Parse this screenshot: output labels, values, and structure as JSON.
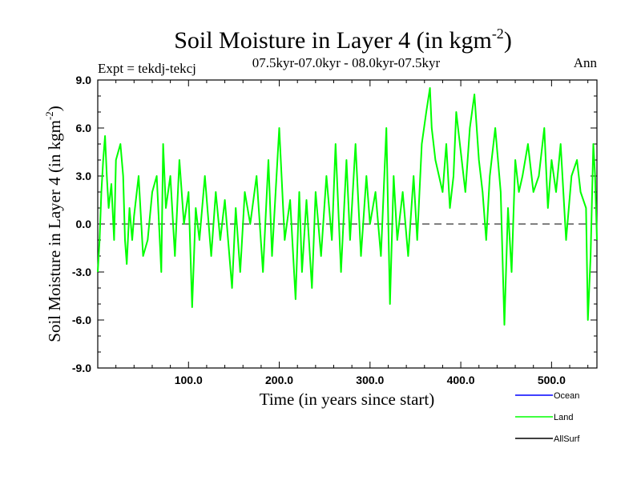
{
  "chart_data": {
    "type": "line",
    "title": "Soil Moisture in Layer 4 (in kgm",
    "title_superscript": "-2",
    "title_close": ")",
    "subtitle": "07.5kyr-07.0kyr - 08.0kyr-07.5kyr",
    "left_label": "Expt = tekdj-tekcj",
    "right_label": "Ann",
    "xlabel": "Time (in years since start)",
    "ylabel": "Soil Moisture in Layer 4 (in kgm",
    "ylabel_superscript": "-2",
    "ylabel_close": ")",
    "xlim": [
      0,
      550
    ],
    "ylim": [
      -9,
      9
    ],
    "xticks": [
      100,
      200,
      300,
      400,
      500
    ],
    "xtick_labels": [
      "100.0",
      "200.0",
      "300.0",
      "400.0",
      "500.0"
    ],
    "yticks": [
      -9,
      -6,
      -3,
      0,
      3,
      6,
      9
    ],
    "ytick_labels": [
      "-9.0",
      "-6.0",
      "-3.0",
      "0.0",
      "3.0",
      "6.0",
      "9.0"
    ],
    "zero_line": "dashed",
    "legend": [
      {
        "name": "Ocean",
        "color": "#0000ff"
      },
      {
        "name": "Land",
        "color": "#00ff00"
      },
      {
        "name": "AllSurf",
        "color": "#000000"
      }
    ],
    "series": [
      {
        "name": "Land",
        "color": "#00ff00",
        "x": [
          0,
          2,
          4,
          6,
          8,
          10,
          12,
          15,
          18,
          20,
          25,
          28,
          30,
          32,
          35,
          38,
          40,
          45,
          50,
          55,
          60,
          65,
          70,
          72,
          75,
          80,
          85,
          90,
          95,
          100,
          104,
          108,
          112,
          118,
          125,
          130,
          135,
          140,
          148,
          152,
          157,
          162,
          168,
          175,
          182,
          188,
          192,
          200,
          206,
          212,
          218,
          222,
          225,
          230,
          236,
          240,
          246,
          252,
          258,
          262,
          268,
          274,
          278,
          284,
          290,
          296,
          300,
          306,
          312,
          318,
          322,
          326,
          330,
          336,
          342,
          348,
          352,
          357,
          362,
          366,
          368,
          372,
          376,
          380,
          384,
          388,
          392,
          395,
          400,
          405,
          410,
          415,
          420,
          424,
          428,
          432,
          438,
          444,
          448,
          452,
          456,
          460,
          464,
          468,
          474,
          480,
          486,
          492,
          496,
          500,
          505,
          510,
          516,
          522,
          528,
          532,
          538,
          540,
          543,
          546,
          548,
          550
        ],
        "y": [
          -3,
          -1,
          2,
          4,
          5.5,
          3,
          1,
          2.5,
          -1,
          4,
          5,
          3,
          -1,
          -2.5,
          1,
          -1,
          0.5,
          3,
          -2,
          -1,
          2,
          3,
          -3,
          5,
          1,
          3,
          -2,
          4,
          0,
          2,
          -5.2,
          1,
          -1,
          3,
          -2,
          2,
          -1,
          1.5,
          -4,
          1,
          -3,
          2,
          0,
          3,
          -3,
          4,
          -2,
          6,
          -1,
          1.5,
          -4.7,
          2,
          -3,
          1.5,
          -4,
          2,
          -2,
          3,
          -1,
          5,
          -3,
          4,
          -1,
          5,
          -2,
          3,
          0,
          2,
          -2,
          6,
          -5,
          3,
          -1,
          2,
          -2,
          3,
          -1,
          5,
          7,
          8.5,
          6,
          4,
          3,
          2,
          5,
          1,
          3,
          7,
          4.5,
          2,
          6,
          8.1,
          4,
          2,
          -1,
          3,
          6,
          2,
          -6.3,
          1,
          -3,
          4,
          2,
          3,
          5,
          2,
          3,
          6,
          1,
          4,
          2,
          5,
          -1,
          3,
          4,
          2,
          1,
          -6,
          -2,
          5,
          3,
          -1
        ]
      }
    ]
  }
}
